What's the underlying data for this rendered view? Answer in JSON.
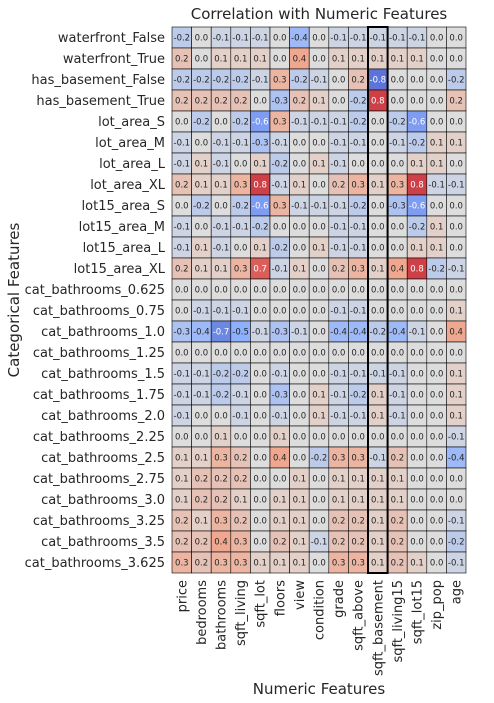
{
  "chart_data": {
    "type": "heatmap",
    "title": "Correlation with Numeric Features",
    "xlabel": "Numeric Features",
    "ylabel": "Categorical Features",
    "color_scale": "coolwarm",
    "value_range": [
      -1,
      1
    ],
    "x_categories": [
      "price",
      "bedrooms",
      "bathrooms",
      "sqft_living",
      "sqft_lot",
      "floors",
      "view",
      "condition",
      "grade",
      "sqft_above",
      "sqft_basement",
      "sqft_living15",
      "sqft_lot15",
      "zip_pop",
      "age"
    ],
    "y_categories": [
      "waterfront_False",
      "waterfront_True",
      "has_basement_False",
      "has_basement_True",
      "lot_area_S",
      "lot_area_M",
      "lot_area_L",
      "lot_area_XL",
      "lot15_area_S",
      "lot15_area_M",
      "lot15_area_L",
      "lot15_area_XL",
      "cat_bathrooms_0.625",
      "cat_bathrooms_0.75",
      "cat_bathrooms_1.0",
      "cat_bathrooms_1.25",
      "cat_bathrooms_1.5",
      "cat_bathrooms_1.75",
      "cat_bathrooms_2.0",
      "cat_bathrooms_2.25",
      "cat_bathrooms_2.5",
      "cat_bathrooms_2.75",
      "cat_bathrooms_3.0",
      "cat_bathrooms_3.25",
      "cat_bathrooms_3.5",
      "cat_bathrooms_3.625"
    ],
    "values": [
      [
        -0.2,
        0.0,
        -0.1,
        -0.1,
        -0.1,
        -0.0,
        -0.4,
        -0.0,
        -0.1,
        -0.1,
        -0.1,
        -0.1,
        -0.1,
        0.0,
        -0.0
      ],
      [
        0.2,
        -0.0,
        0.1,
        0.1,
        0.1,
        0.0,
        0.4,
        0.0,
        0.1,
        0.1,
        0.1,
        0.1,
        0.1,
        -0.0,
        0.0
      ],
      [
        -0.2,
        -0.2,
        -0.2,
        -0.2,
        -0.1,
        0.3,
        -0.2,
        -0.1,
        -0.0,
        0.2,
        -0.8,
        -0.0,
        0.0,
        -0.0,
        -0.2
      ],
      [
        0.2,
        0.2,
        0.2,
        0.2,
        -0.0,
        -0.3,
        0.2,
        0.1,
        0.0,
        -0.2,
        0.8,
        0.0,
        -0.0,
        -0.0,
        0.2
      ],
      [
        -0.0,
        -0.2,
        -0.0,
        -0.2,
        -0.6,
        0.3,
        -0.1,
        -0.1,
        -0.1,
        -0.2,
        0.0,
        -0.2,
        -0.6,
        -0.0,
        -0.0
      ],
      [
        -0.1,
        -0.0,
        -0.1,
        -0.1,
        -0.3,
        -0.1,
        -0.0,
        -0.0,
        -0.1,
        -0.1,
        0.0,
        -0.1,
        -0.2,
        0.1,
        0.1
      ],
      [
        -0.1,
        0.1,
        -0.1,
        -0.0,
        0.1,
        -0.2,
        -0.0,
        0.1,
        -0.1,
        -0.0,
        0.0,
        -0.0,
        0.1,
        0.1,
        0.0
      ],
      [
        0.2,
        0.1,
        0.1,
        0.3,
        0.8,
        -0.1,
        0.1,
        0.0,
        0.2,
        0.3,
        0.1,
        0.3,
        0.8,
        -0.1,
        -0.1
      ],
      [
        0.0,
        -0.2,
        -0.0,
        -0.2,
        -0.6,
        0.3,
        -0.1,
        -0.1,
        -0.1,
        -0.2,
        0.0,
        -0.3,
        -0.6,
        -0.0,
        0.0
      ],
      [
        -0.1,
        -0.0,
        -0.1,
        -0.1,
        -0.2,
        -0.0,
        -0.0,
        -0.0,
        -0.1,
        -0.1,
        -0.0,
        -0.0,
        -0.2,
        0.1,
        0.0
      ],
      [
        -0.1,
        0.1,
        -0.1,
        -0.0,
        0.1,
        -0.2,
        -0.0,
        0.1,
        -0.1,
        -0.1,
        0.0,
        -0.0,
        0.1,
        0.1,
        0.0
      ],
      [
        0.2,
        0.1,
        0.1,
        0.3,
        0.7,
        -0.1,
        0.1,
        0.0,
        0.2,
        0.3,
        0.1,
        0.4,
        0.8,
        -0.2,
        -0.1
      ],
      [
        -0.0,
        -0.0,
        -0.0,
        -0.0,
        -0.0,
        -0.0,
        -0.0,
        -0.0,
        -0.0,
        -0.0,
        -0.0,
        -0.0,
        -0.0,
        0.0,
        0.0
      ],
      [
        -0.0,
        -0.1,
        -0.1,
        -0.1,
        0.0,
        -0.0,
        0.0,
        0.0,
        -0.1,
        -0.1,
        -0.0,
        -0.0,
        0.0,
        -0.0,
        0.1
      ],
      [
        -0.3,
        -0.4,
        -0.7,
        -0.5,
        -0.1,
        -0.3,
        -0.1,
        0.0,
        -0.4,
        -0.4,
        -0.2,
        -0.4,
        -0.1,
        -0.0,
        0.4
      ],
      [
        0.0,
        -0.0,
        -0.0,
        -0.0,
        -0.0,
        0.0,
        0.0,
        0.0,
        0.0,
        -0.0,
        -0.0,
        -0.0,
        -0.0,
        -0.0,
        -0.0
      ],
      [
        -0.1,
        -0.1,
        -0.2,
        -0.2,
        -0.0,
        -0.1,
        -0.0,
        0.0,
        -0.1,
        -0.1,
        -0.1,
        -0.1,
        -0.0,
        0.0,
        0.1
      ],
      [
        -0.1,
        -0.1,
        -0.2,
        -0.1,
        0.0,
        -0.3,
        -0.0,
        0.1,
        -0.1,
        -0.2,
        0.1,
        -0.1,
        0.0,
        0.0,
        0.1
      ],
      [
        -0.1,
        -0.0,
        -0.0,
        -0.1,
        -0.0,
        -0.1,
        -0.0,
        0.1,
        -0.1,
        -0.1,
        0.1,
        -0.1,
        -0.0,
        -0.0,
        0.1
      ],
      [
        0.0,
        0.0,
        0.1,
        0.0,
        0.0,
        0.1,
        -0.0,
        0.0,
        -0.0,
        0.0,
        0.0,
        0.0,
        0.0,
        0.0,
        -0.1
      ],
      [
        0.1,
        0.1,
        0.3,
        0.2,
        -0.0,
        0.4,
        -0.0,
        -0.2,
        0.3,
        0.3,
        -0.1,
        0.2,
        -0.0,
        0.0,
        -0.4
      ],
      [
        0.1,
        0.2,
        0.2,
        0.2,
        0.0,
        0.0,
        0.1,
        0.0,
        0.1,
        0.1,
        0.1,
        0.1,
        0.0,
        0.0,
        0.0
      ],
      [
        0.1,
        0.2,
        0.2,
        0.1,
        0.0,
        0.1,
        0.1,
        -0.0,
        0.1,
        0.1,
        0.1,
        0.1,
        0.0,
        -0.0,
        -0.0
      ],
      [
        0.2,
        0.1,
        0.3,
        0.2,
        0.0,
        0.1,
        0.1,
        -0.0,
        0.2,
        0.2,
        0.1,
        0.2,
        0.0,
        -0.0,
        -0.1
      ],
      [
        0.2,
        0.2,
        0.4,
        0.3,
        0.0,
        0.2,
        0.1,
        -0.1,
        0.2,
        0.2,
        0.1,
        0.2,
        0.0,
        -0.0,
        -0.2
      ],
      [
        0.3,
        0.2,
        0.3,
        0.3,
        0.1,
        0.1,
        0.1,
        -0.0,
        0.3,
        0.3,
        0.1,
        0.2,
        0.1,
        -0.0,
        -0.1
      ]
    ],
    "grid": true,
    "emphasized_columns": [
      "sqft_basement"
    ]
  }
}
